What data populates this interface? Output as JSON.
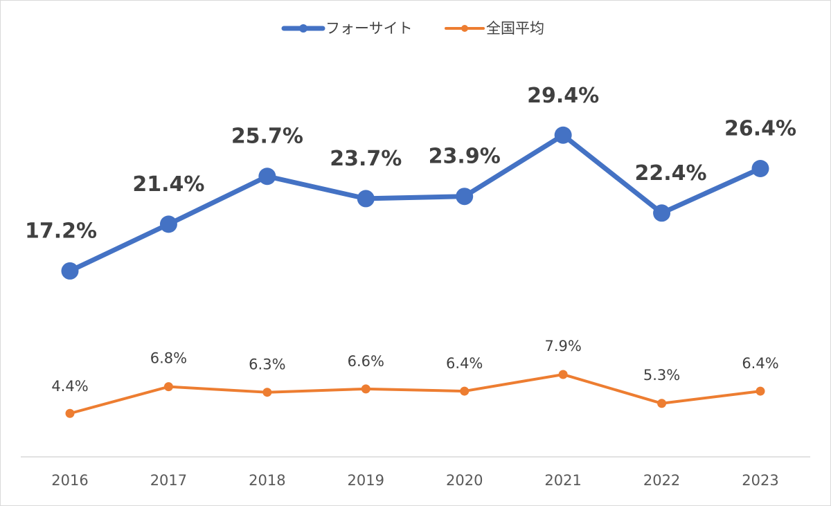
{
  "chart_data": {
    "type": "line",
    "title": "",
    "xlabel": "",
    "ylabel": "",
    "categories": [
      "2016",
      "2017",
      "2018",
      "2019",
      "2020",
      "2021",
      "2022",
      "2023"
    ],
    "ylim": [
      0,
      35
    ],
    "grid": false,
    "legend_position": "top-center",
    "series": [
      {
        "name": "フォーサイト",
        "color": "#4472C4",
        "values": [
          17.2,
          21.4,
          25.7,
          23.7,
          23.9,
          29.4,
          22.4,
          26.4
        ],
        "labels": [
          "17.2%",
          "21.4%",
          "25.7%",
          "23.7%",
          "23.9%",
          "29.4%",
          "22.4%",
          "26.4%"
        ]
      },
      {
        "name": "全国平均",
        "color": "#ED7D31",
        "values": [
          4.4,
          6.8,
          6.3,
          6.6,
          6.4,
          7.9,
          5.3,
          6.4
        ],
        "labels": [
          "4.4%",
          "6.8%",
          "6.3%",
          "6.6%",
          "6.4%",
          "7.9%",
          "5.3%",
          "6.4%"
        ]
      }
    ]
  }
}
